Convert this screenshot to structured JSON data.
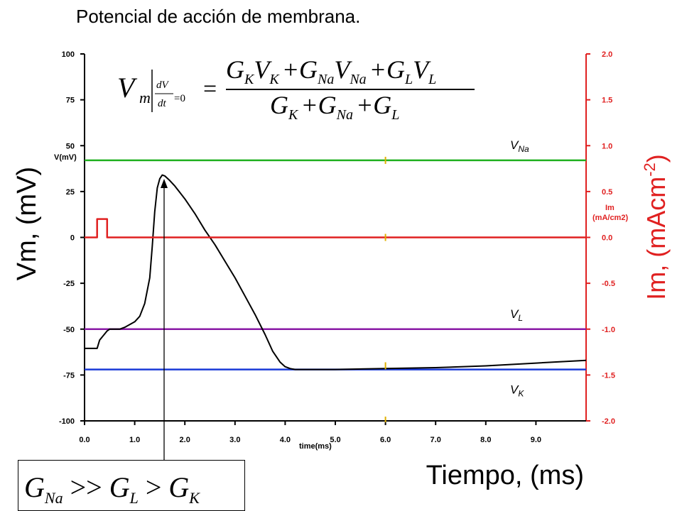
{
  "title": "Potencial de acción de membrana.",
  "chart_data": {
    "type": "line",
    "title": "Potencial de acción de membrana.",
    "xlabel": "Tiempo, (ms)",
    "ylabel_left": "Vm, (mV)",
    "ylabel_right_base": "Im, (mAcm",
    "ylabel_right_sup": "-2",
    "ylabel_right_close": ")",
    "inner_xlabel": "time(ms)",
    "inner_ylabel_left": "V(mV)",
    "inner_ylabel_right_1": "Im",
    "inner_ylabel_right_2": "(mA/cm2)",
    "xlim": [
      0,
      10
    ],
    "ylim_left": [
      -100,
      100
    ],
    "ylim_right": [
      -2.0,
      2.0
    ],
    "x_ticks": [
      "0.0",
      "1.0",
      "2.0",
      "3.0",
      "4.0",
      "5.0",
      "6.0",
      "7.0",
      "8.0",
      "9.0"
    ],
    "y_ticks_left": [
      "100",
      "75",
      "50",
      "25",
      "0",
      "-25",
      "-50",
      "-75",
      "-100"
    ],
    "y_ticks_right": [
      "2.0",
      "1.5",
      "1.0",
      "0.5",
      "0.0",
      "-0.5",
      "-1.0",
      "-1.5",
      "-2.0"
    ],
    "series": [
      {
        "name": "V",
        "color": "#000000",
        "x": [
          0,
          0.25,
          0.3,
          0.45,
          0.5,
          0.7,
          0.8,
          1.0,
          1.1,
          1.2,
          1.3,
          1.35,
          1.4,
          1.45,
          1.5,
          1.55,
          1.6,
          1.7,
          1.8,
          2.0,
          2.2,
          2.4,
          2.6,
          2.8,
          3.0,
          3.2,
          3.4,
          3.6,
          3.75,
          3.9,
          4.0,
          4.1,
          4.2,
          5.0,
          6.0,
          7.0,
          8.0,
          9.0,
          10.0
        ],
        "y": [
          -60.5,
          -60.5,
          -56,
          -51,
          -50,
          -50,
          -49,
          -46,
          -43,
          -36,
          -22,
          -5,
          14,
          27,
          32,
          34,
          33.5,
          31,
          28,
          21,
          13,
          4,
          -4,
          -13,
          -22,
          -32,
          -42,
          -53,
          -62,
          -68,
          -70.5,
          -71.5,
          -72,
          -72,
          -71.5,
          -71,
          -70,
          -68.5,
          -67
        ]
      },
      {
        "name": "Im",
        "color": "#e02020",
        "x": [
          0,
          0.25,
          0.25,
          0.45,
          0.45,
          10.0
        ],
        "y": [
          0,
          0,
          0.2,
          0.2,
          0,
          0
        ]
      }
    ],
    "reference_lines": [
      {
        "name": "VNa",
        "label_main": "V",
        "label_sub": "Na",
        "y": 42,
        "color": "#20b020"
      },
      {
        "name": "VL",
        "label_main": "V",
        "label_sub": "L",
        "y": -50,
        "color": "#8a1aa6"
      },
      {
        "name": "VK",
        "label_main": "V",
        "label_sub": "K",
        "y": -72,
        "color": "#1a3ad8"
      }
    ],
    "marker_x": 6.0
  },
  "equation": {
    "lhs_v": "V",
    "lhs_m": "m",
    "dV": "dV",
    "dt": "dt",
    "eq0": "=0",
    "equals": "=",
    "numerator": [
      "G",
      "K",
      "V",
      "K",
      "+G",
      "Na",
      "V",
      "Na",
      "+G",
      "L",
      "V",
      "L"
    ],
    "denominator": [
      "G",
      "K",
      "+G",
      "Na",
      "+G",
      "L"
    ]
  },
  "inequality": {
    "G1": "G",
    "s1": "Na",
    "op1": ">>",
    "G2": "G",
    "s2": "L",
    "op2": ">",
    "G3": "G",
    "s3": "K"
  },
  "colors": {
    "left_axis": "#000000",
    "right_axis": "#e02020",
    "marker": "#e0b000"
  }
}
